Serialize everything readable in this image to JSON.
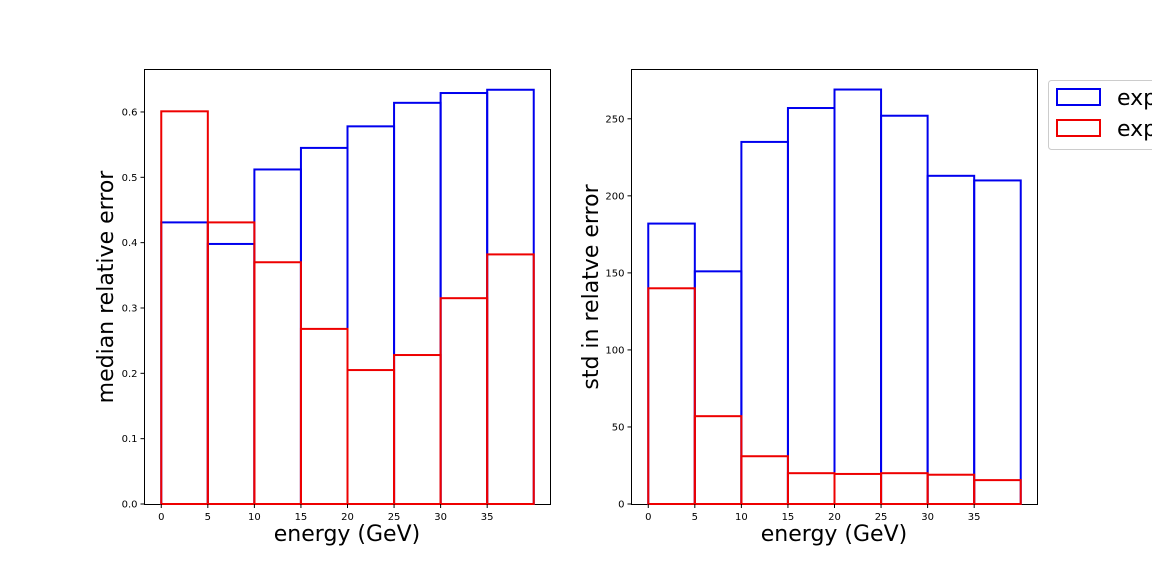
{
  "chart_data": [
    {
      "type": "histogram-step",
      "xlabel": "energy (GeV)",
      "ylabel": "median relative error",
      "bin_edges": [
        0,
        5,
        10,
        15,
        20,
        25,
        30,
        35,
        40
      ],
      "xticks": [
        0,
        5,
        10,
        15,
        20,
        25,
        30,
        35
      ],
      "xticklabels": [
        "0",
        "5",
        "10",
        "15",
        "20",
        "25",
        "30",
        "35"
      ],
      "yticks": [
        0.0,
        0.1,
        0.2,
        0.3,
        0.4,
        0.5,
        0.6
      ],
      "yticklabels": [
        "0.0",
        "0.1",
        "0.2",
        "0.3",
        "0.4",
        "0.5",
        "0.6"
      ],
      "xlim": [
        -1.8,
        41.8
      ],
      "ylim": [
        0,
        0.665
      ],
      "series": [
        {
          "color": "#0000ee",
          "values": [
            0.431,
            0.398,
            0.512,
            0.545,
            0.578,
            0.614,
            0.629,
            0.634
          ]
        },
        {
          "color": "#ee0000",
          "values": [
            0.601,
            0.431,
            0.37,
            0.268,
            0.205,
            0.228,
            0.315,
            0.382
          ]
        }
      ]
    },
    {
      "type": "histogram-step",
      "xlabel": "energy (GeV)",
      "ylabel": "std in relatve error",
      "bin_edges": [
        0,
        5,
        10,
        15,
        20,
        25,
        30,
        35,
        40
      ],
      "xticks": [
        0,
        5,
        10,
        15,
        20,
        25,
        30,
        35
      ],
      "xticklabels": [
        "0",
        "5",
        "10",
        "15",
        "20",
        "25",
        "30",
        "35"
      ],
      "yticks": [
        0,
        50,
        100,
        150,
        200,
        250
      ],
      "yticklabels": [
        "0",
        "50",
        "100",
        "150",
        "200",
        "250"
      ],
      "xlim": [
        -1.8,
        41.8
      ],
      "ylim": [
        0,
        282
      ],
      "series": [
        {
          "color": "#0000ee",
          "values": [
            182,
            151,
            235,
            257,
            269,
            252,
            213,
            210
          ]
        },
        {
          "color": "#ee0000",
          "values": [
            140,
            57,
            31,
            20,
            19.5,
            20,
            19,
            15.5
          ]
        }
      ]
    }
  ],
  "legend": {
    "placement": "outside-right",
    "entries": [
      {
        "label": "exp",
        "color": "#0000ee"
      },
      {
        "label": "exp",
        "color": "#ee0000"
      }
    ]
  }
}
